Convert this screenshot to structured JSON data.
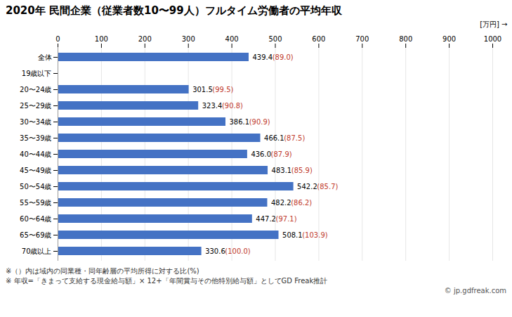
{
  "chart_data": {
    "type": "bar",
    "orientation": "horizontal",
    "title": "2020年 民間企業（従業者数10〜99人）フルタイム労働者の平均年収",
    "x_label": "[万円]",
    "categories": [
      "全体",
      "19歳以下",
      "20〜24歳",
      "25〜29歳",
      "30〜34歳",
      "35〜39歳",
      "40〜44歳",
      "45〜49歳",
      "50〜54歳",
      "55〜59歳",
      "60〜64歳",
      "65〜69歳",
      "70歳以上"
    ],
    "values": [
      439.4,
      null,
      301.5,
      323.4,
      386.1,
      466.1,
      436.0,
      483.1,
      542.2,
      482.2,
      447.2,
      508.1,
      330.6
    ],
    "value_labels": [
      "439.4",
      null,
      "301.5",
      "323.4",
      "386.1",
      "466.1",
      "436.0",
      "483.1",
      "542.2",
      "482.2",
      "447.2",
      "508.1",
      "330.6"
    ],
    "ratios": [
      89.0,
      null,
      99.5,
      90.8,
      90.9,
      87.5,
      87.9,
      85.9,
      85.7,
      86.2,
      97.1,
      103.9,
      100.0
    ],
    "ratio_labels": [
      "(89.0)",
      null,
      "(99.5)",
      "(90.8)",
      "(90.9)",
      "(87.5)",
      "(87.9)",
      "(85.9)",
      "(85.7)",
      "(86.2)",
      "(97.1)",
      "(103.9)",
      "(100.0)"
    ],
    "color": "#4472c4",
    "ratio_color": "#c0392b",
    "value_color": "#000000",
    "xlim": [
      0,
      1000
    ],
    "xticks": [
      0,
      100,
      200,
      300,
      400,
      500,
      600,
      700,
      800,
      900,
      1000
    ],
    "grid": true,
    "data_labels": true,
    "annotations": [
      "※（）内は域内の同業種・同年齢層の平均所得に対する比(%)",
      "※ 年収=「きまって支給する現金給与額」× 12+「年間賞与その他特別給与額」としてGD Freak推計",
      "© jp.gdfreak.com"
    ]
  }
}
